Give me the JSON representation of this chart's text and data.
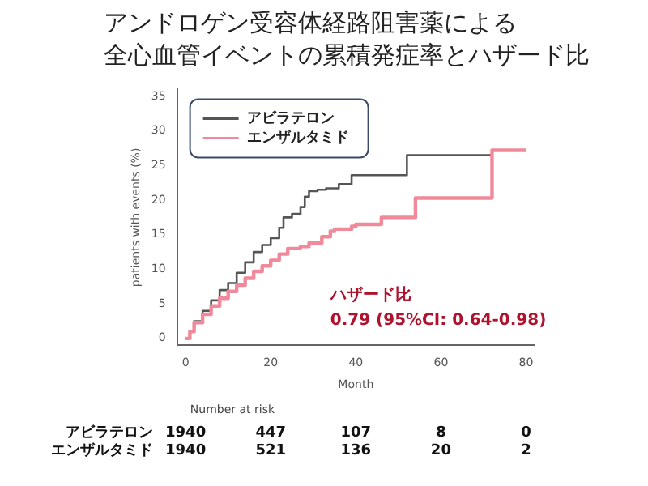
{
  "chart_data": {
    "type": "step",
    "title": "アンドロゲン受容体経路阻害薬による",
    "subtitle": "全心血管イベントの累積発症率とハザード比",
    "xlabel": "Month",
    "ylabel": "patients with events (%)",
    "series": [
      {
        "name": "アビラテロン",
        "color": "#555555",
        "x": [
          0,
          1,
          2,
          4,
          6,
          8,
          10,
          12,
          14,
          16,
          18,
          20,
          22,
          23,
          25,
          27,
          28,
          29,
          31,
          33,
          36,
          39,
          45,
          52,
          72
        ],
        "values": [
          0,
          1,
          2.5,
          4,
          5.5,
          7,
          8,
          9.5,
          11,
          12.5,
          13.5,
          14.5,
          16,
          17.5,
          18,
          19,
          20.5,
          21.3,
          21.5,
          21.7,
          22.3,
          23.6,
          23.6,
          26.5,
          26.5
        ]
      },
      {
        "name": "エンザルタミド",
        "color": "#f08a9a",
        "x": [
          0,
          1,
          2,
          4,
          6,
          8,
          10,
          12,
          14,
          16,
          18,
          20,
          22,
          24,
          27,
          29,
          32,
          34,
          35,
          39,
          40,
          46,
          54,
          72,
          80
        ],
        "values": [
          0,
          1,
          2.3,
          3.5,
          4.7,
          5.8,
          6.8,
          7.7,
          8.7,
          9.7,
          10.5,
          11.3,
          12.2,
          13,
          13.3,
          13.8,
          14.7,
          15.5,
          15.8,
          16.2,
          16.5,
          17.5,
          20.3,
          27.2,
          27.2
        ]
      }
    ],
    "xlim": [
      -2,
      82
    ],
    "xticks": [
      0,
      20,
      40,
      60,
      80
    ],
    "ylim": [
      -1,
      36
    ],
    "yticks": [
      0,
      5,
      10,
      15,
      20,
      25,
      30,
      35
    ],
    "grid": false,
    "legend": "top left",
    "annotations": [
      "ハザード比",
      "0.79 (95%CI: 0.64-0.98)",
      "Number at risk",
      "1940",
      "447",
      "107",
      "8",
      "0",
      "1940",
      "521",
      "136",
      "20",
      "2"
    ]
  }
}
